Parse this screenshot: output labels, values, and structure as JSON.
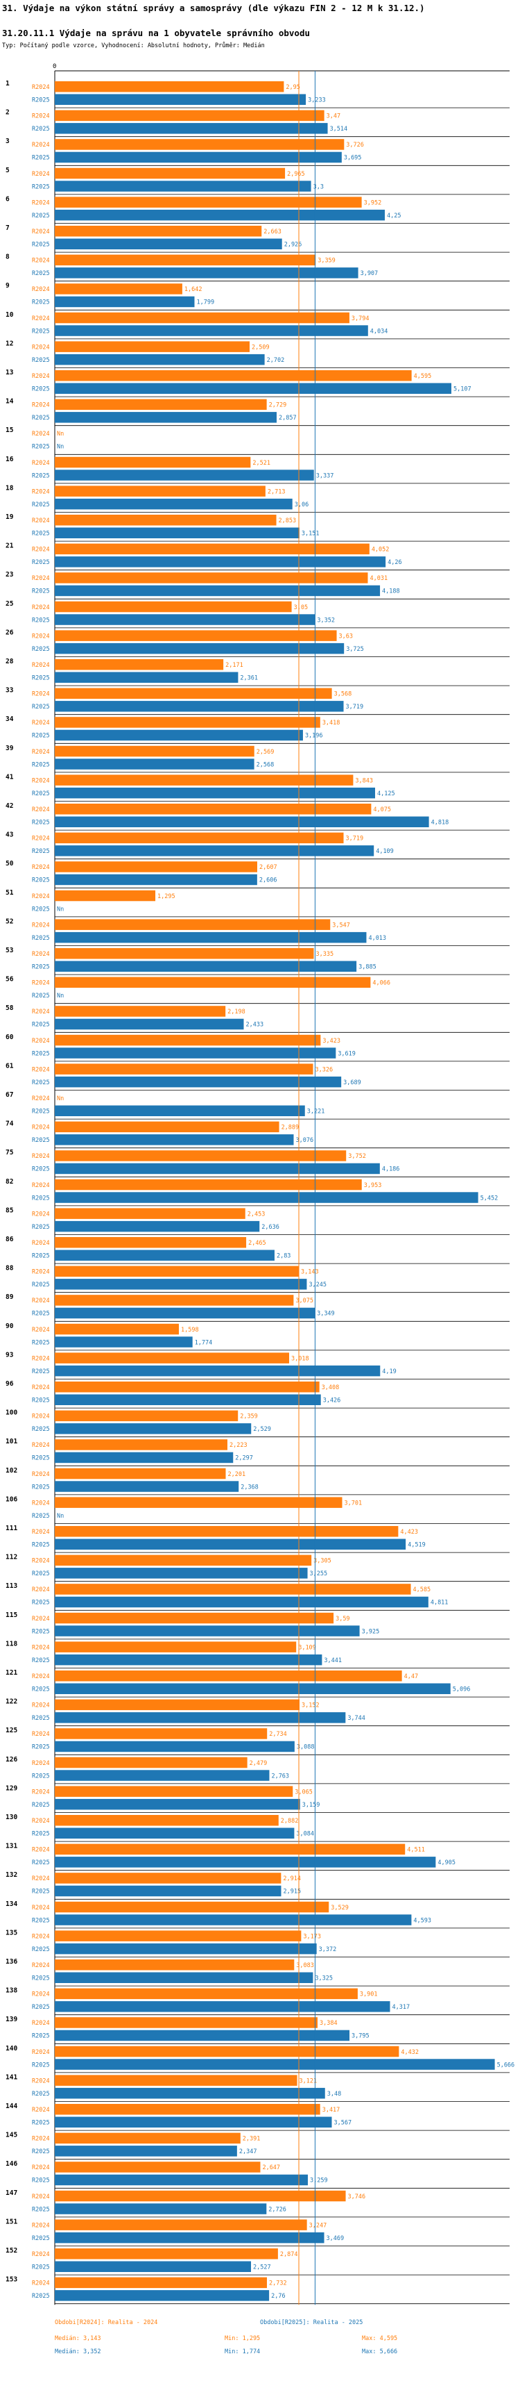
{
  "title": "31. Výdaje na výkon státní správy a samosprávy (dle výkazu FIN 2 - 12 M k 31.12.)",
  "subtitle": "31.20.11.1 Výdaje na správu na 1 obyvatele správního obvodu",
  "meta": "Typ: Počítaný podle vzorce, Vyhodnocení: Absolutní hodnoty, Průměr: Medián",
  "colors": {
    "s2024": "#ff7f0e",
    "s2025": "#1f77b4"
  },
  "chart_data": {
    "type": "bar",
    "orientation": "horizontal",
    "axis_zero_label": "0",
    "xlim": [
      0,
      5.75
    ],
    "series_row_labels": [
      "R2024",
      "R2025"
    ],
    "categories": [
      "1",
      "2",
      "3",
      "5",
      "6",
      "7",
      "8",
      "9",
      "10",
      "12",
      "13",
      "14",
      "15",
      "16",
      "18",
      "19",
      "21",
      "23",
      "25",
      "26",
      "28",
      "33",
      "34",
      "39",
      "41",
      "42",
      "43",
      "50",
      "51",
      "52",
      "53",
      "56",
      "58",
      "60",
      "61",
      "67",
      "74",
      "75",
      "82",
      "85",
      "86",
      "88",
      "89",
      "90",
      "93",
      "96",
      "100",
      "101",
      "102",
      "106",
      "111",
      "112",
      "113",
      "115",
      "118",
      "121",
      "122",
      "125",
      "126",
      "129",
      "130",
      "131",
      "132",
      "134",
      "135",
      "136",
      "138",
      "139",
      "140",
      "141",
      "144",
      "145",
      "146",
      "147",
      "151",
      "152",
      "153"
    ],
    "series": [
      {
        "name": "R2024",
        "labels": [
          "2,95",
          "3,47",
          "3,726",
          "2,965",
          "3,952",
          "2,663",
          "3,359",
          "1,642",
          "3,794",
          "2,509",
          "4,595",
          "2,729",
          "Nn",
          "2,521",
          "2,713",
          "2,853",
          "4,052",
          "4,031",
          "3,05",
          "3,63",
          "2,171",
          "3,568",
          "3,418",
          "2,569",
          "3,843",
          "4,075",
          "3,719",
          "2,607",
          "1,295",
          "3,547",
          "3,335",
          "4,066",
          "2,198",
          "3,423",
          "3,326",
          "Nn",
          "2,889",
          "3,752",
          "3,953",
          "2,453",
          "2,465",
          "3,143",
          "3,075",
          "1,598",
          "3,018",
          "3,408",
          "2,359",
          "2,223",
          "2,201",
          "3,701",
          "4,423",
          "3,305",
          "4,585",
          "3,59",
          "3,109",
          "4,47",
          "3,152",
          "2,734",
          "2,479",
          "3,065",
          "2,882",
          "4,511",
          "2,914",
          "3,529",
          "3,173",
          "3,083",
          "3,901",
          "3,384",
          "4,432",
          "3,121",
          "3,417",
          "2,391",
          "2,647",
          "3,746",
          "3,247",
          "2,874",
          "2,732"
        ],
        "values": [
          2.95,
          3.47,
          3.726,
          2.965,
          3.952,
          2.663,
          3.359,
          1.642,
          3.794,
          2.509,
          4.595,
          2.729,
          null,
          2.521,
          2.713,
          2.853,
          4.052,
          4.031,
          3.05,
          3.63,
          2.171,
          3.568,
          3.418,
          2.569,
          3.843,
          4.075,
          3.719,
          2.607,
          1.295,
          3.547,
          3.335,
          4.066,
          2.198,
          3.423,
          3.326,
          null,
          2.889,
          3.752,
          3.953,
          2.453,
          2.465,
          3.143,
          3.075,
          1.598,
          3.018,
          3.408,
          2.359,
          2.223,
          2.201,
          3.701,
          4.423,
          3.305,
          4.585,
          3.59,
          3.109,
          4.47,
          3.152,
          2.734,
          2.479,
          3.065,
          2.882,
          4.511,
          2.914,
          3.529,
          3.173,
          3.083,
          3.901,
          3.384,
          4.432,
          3.121,
          3.417,
          2.391,
          2.647,
          3.746,
          3.247,
          2.874,
          2.732
        ]
      },
      {
        "name": "R2025",
        "labels": [
          "3,233",
          "3,514",
          "3,695",
          "3,3",
          "4,25",
          "2,926",
          "3,907",
          "1,799",
          "4,034",
          "2,702",
          "5,107",
          "2,857",
          "Nn",
          "3,337",
          "3,06",
          "3,151",
          "4,26",
          "4,188",
          "3,352",
          "3,725",
          "2,361",
          "3,719",
          "3,196",
          "2,568",
          "4,125",
          "4,818",
          "4,109",
          "2,606",
          "Nn",
          "4,013",
          "3,885",
          "Nn",
          "2,433",
          "3,619",
          "3,689",
          "3,221",
          "3,076",
          "4,186",
          "5,452",
          "2,636",
          "2,83",
          "3,245",
          "3,349",
          "1,774",
          "4,19",
          "3,426",
          "2,529",
          "2,297",
          "2,368",
          "Nn",
          "4,519",
          "3,255",
          "4,811",
          "3,925",
          "3,441",
          "5,096",
          "3,744",
          "3,088",
          "2,763",
          "3,159",
          "3,084",
          "4,905",
          "2,915",
          "4,593",
          "3,372",
          "3,325",
          "4,317",
          "3,795",
          "5,666",
          "3,48",
          "3,567",
          "2,347",
          "3,259",
          "2,726",
          "3,469",
          "2,527",
          "2,76"
        ],
        "values": [
          3.233,
          3.514,
          3.695,
          3.3,
          4.25,
          2.926,
          3.907,
          1.799,
          4.034,
          2.702,
          5.107,
          2.857,
          null,
          3.337,
          3.06,
          3.151,
          4.26,
          4.188,
          3.352,
          3.725,
          2.361,
          3.719,
          3.196,
          2.568,
          4.125,
          4.818,
          4.109,
          2.606,
          null,
          4.013,
          3.885,
          null,
          2.433,
          3.619,
          3.689,
          3.221,
          3.076,
          4.186,
          5.452,
          2.636,
          2.83,
          3.245,
          3.349,
          1.774,
          4.19,
          3.426,
          2.529,
          2.297,
          2.368,
          null,
          4.519,
          3.255,
          4.811,
          3.925,
          3.441,
          5.096,
          3.744,
          3.088,
          2.763,
          3.159,
          3.084,
          4.905,
          2.915,
          4.593,
          3.372,
          3.325,
          4.317,
          3.795,
          5.666,
          3.48,
          3.567,
          2.347,
          3.259,
          2.726,
          3.469,
          2.527,
          2.76
        ]
      }
    ],
    "median_lines": [
      3.143,
      3.352
    ],
    "legend": {
      "s2024": {
        "title": "Obdobi[R2024]: Realita - 2024",
        "median": "Medián: 3,143",
        "min": "Min: 1,295",
        "max": "Max: 4,595"
      },
      "s2025": {
        "title": "Obdobi[R2025]: Realita - 2025",
        "median": "Medián: 3,352",
        "min": "Min: 1,774",
        "max": "Max: 5,666"
      }
    }
  }
}
